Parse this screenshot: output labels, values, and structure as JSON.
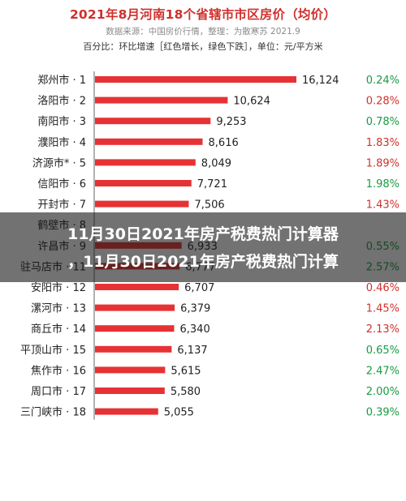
{
  "header": {
    "title": "2021年8月河南18个省辖市市区房价（均价）",
    "source": "数据来源：中国房价行情，整理：为散寒苏 2021.9",
    "note": "百分比：环比增速［红色增长，绿色下跌］，单位：元/平方米"
  },
  "overlay": {
    "line1": "11月30日2021年房产税费热门计算器",
    "line2": "，11月30日2021年房产税费热门计算"
  },
  "colors": {
    "bar": "#e63234",
    "up": "#d0312d",
    "down": "#1a9a44",
    "label": "#222222"
  },
  "chart_data": {
    "type": "bar",
    "orientation": "horizontal",
    "title": "2021年8月河南18个省辖市市区房价（均价）",
    "unit": "元/平方米",
    "categories": [
      "郑州市 · 1",
      "洛阳市 · 2",
      "南阳市 · 3",
      "濮阳市 · 4",
      "济源市* · 5",
      "信阳市 · 6",
      "开封市 · 7",
      "鹤壁市 · 8",
      "许昌市 · 9",
      "驻马店市 · 11",
      "安阳市 · 12",
      "漯河市 · 13",
      "商丘市 · 14",
      "平顶山市 · 15",
      "焦作市 · 16",
      "周口市 · 17",
      "三门峡市 · 18"
    ],
    "values": [
      16124,
      10624,
      9253,
      8616,
      8049,
      7721,
      7506,
      null,
      6933,
      6777,
      6707,
      6379,
      6340,
      6137,
      5615,
      5580,
      5055
    ],
    "value_labels": [
      "16,124",
      "10,624",
      "9,253",
      "8,616",
      "8,049",
      "7,721",
      "7,506",
      "",
      "6,933",
      "6,777",
      "6,707",
      "6,379",
      "6,340",
      "6,137",
      "5,615",
      "5,580",
      "5,055"
    ],
    "changes": [
      "0.24%",
      "0.28%",
      "0.78%",
      "1.83%",
      "1.89%",
      "1.98%",
      "1.43%",
      "",
      "0.55%",
      "2.57%",
      "0.46%",
      "1.45%",
      "2.13%",
      "0.65%",
      "2.47%",
      "2.00%",
      "0.39%"
    ],
    "change_direction": [
      "down",
      "up",
      "down",
      "up",
      "up",
      "down",
      "up",
      "",
      "down",
      "down",
      "up",
      "up",
      "up",
      "down",
      "down",
      "down",
      "down"
    ],
    "xlim": [
      0,
      16124
    ]
  }
}
